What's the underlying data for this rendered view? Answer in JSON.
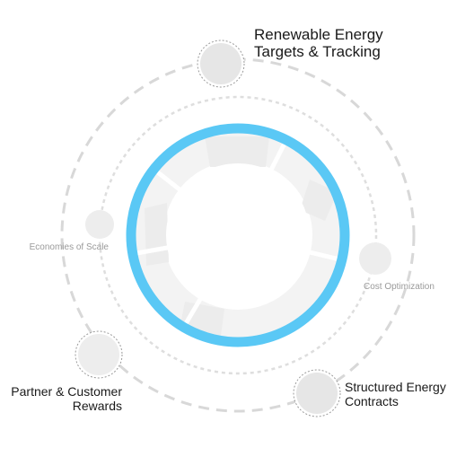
{
  "nodes": {
    "renewable": {
      "lines": [
        "Renewable Energy",
        "Targets & Tracking"
      ]
    },
    "cost": {
      "lines": [
        "Cost Optimization"
      ]
    },
    "structured": {
      "lines": [
        "Structured Energy",
        "Contracts"
      ]
    },
    "partner": {
      "lines": [
        "Partner & Customer",
        "Rewards"
      ]
    },
    "scale": {
      "lines": [
        "Economies of Scale"
      ]
    }
  },
  "colors": {
    "accent_ring": "#5ac8f5",
    "dashed_orbit": "#d6d6d6",
    "node_fill": "#e8e8e8",
    "node_border": "#9a9a9a",
    "segment_fill": "#f2f2f2"
  }
}
